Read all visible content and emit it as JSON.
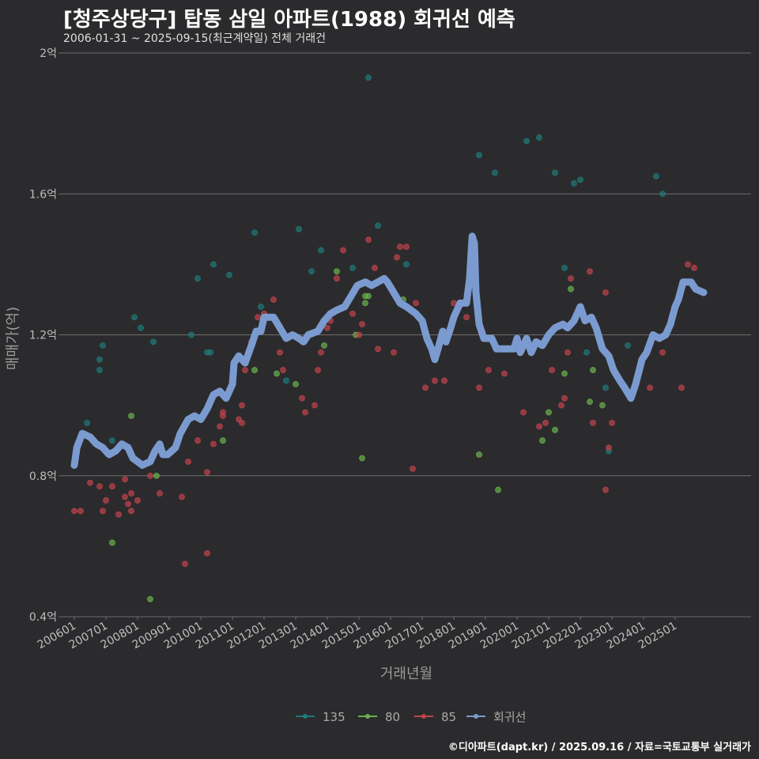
{
  "title": "[청주상당구] 탑동 삼일 아파트(1988) 회귀선 예측",
  "subtitle": "2006-01-31 ~ 2025-09-15(최근계약일) 전체 거래건",
  "caption": "©디아파트(dapt.kr) / 2025.09.16 / 자료=국토교통부 실거래가",
  "colors": {
    "background": "#2b2b2d",
    "grid": "#6e6e6e",
    "s135": "#1f7a7a",
    "s80": "#6ab04c",
    "s85": "#c0434b",
    "regression": "#7b9bd0"
  },
  "chart_data": {
    "type": "scatter",
    "xlabel": "거래년월",
    "ylabel": "매매가(억)",
    "x_ticks": [
      "200601",
      "200701",
      "200801",
      "200901",
      "201001",
      "201101",
      "201201",
      "201301",
      "201401",
      "201501",
      "201601",
      "201701",
      "201801",
      "201901",
      "202001",
      "202101",
      "202201",
      "202301",
      "202401",
      "202501"
    ],
    "xlim": [
      2005.6,
      2027.4
    ],
    "ylim": [
      0.4,
      2.0
    ],
    "y_ticks": [
      {
        "value": 0.4,
        "label": "0.4억"
      },
      {
        "value": 0.8,
        "label": "0.8억"
      },
      {
        "value": 1.2,
        "label": "1.2억"
      },
      {
        "value": 1.6,
        "label": "1.6억"
      },
      {
        "value": 2.0,
        "label": "2억"
      }
    ],
    "legend": {
      "position": "bottom",
      "items": [
        "135",
        "80",
        "85",
        "회귀선"
      ]
    },
    "series": [
      {
        "name": "135",
        "points": [
          [
            2006.4,
            0.95
          ],
          [
            2006.8,
            1.1
          ],
          [
            2006.8,
            1.13
          ],
          [
            2006.9,
            1.17
          ],
          [
            2007.2,
            0.9
          ],
          [
            2007.9,
            1.25
          ],
          [
            2008.1,
            1.22
          ],
          [
            2008.5,
            1.18
          ],
          [
            2009.7,
            1.2
          ],
          [
            2009.9,
            1.36
          ],
          [
            2010.2,
            1.15
          ],
          [
            2010.3,
            1.15
          ],
          [
            2010.4,
            1.4
          ],
          [
            2010.9,
            1.37
          ],
          [
            2011.7,
            1.49
          ],
          [
            2011.9,
            1.28
          ],
          [
            2012.7,
            1.07
          ],
          [
            2013.1,
            1.5
          ],
          [
            2013.5,
            1.38
          ],
          [
            2013.8,
            1.44
          ],
          [
            2014.8,
            1.39
          ],
          [
            2015.3,
            1.93
          ],
          [
            2015.6,
            1.51
          ],
          [
            2016.5,
            1.4
          ],
          [
            2018.8,
            1.71
          ],
          [
            2019.3,
            1.66
          ],
          [
            2020.3,
            1.75
          ],
          [
            2020.7,
            1.76
          ],
          [
            2021.2,
            1.66
          ],
          [
            2021.5,
            1.39
          ],
          [
            2021.8,
            1.63
          ],
          [
            2022.0,
            1.64
          ],
          [
            2022.2,
            1.15
          ],
          [
            2022.8,
            1.05
          ],
          [
            2022.9,
            0.87
          ],
          [
            2023.5,
            1.17
          ],
          [
            2024.4,
            1.65
          ],
          [
            2024.6,
            1.6
          ]
        ]
      },
      {
        "name": "80",
        "points": [
          [
            2007.2,
            0.61
          ],
          [
            2007.8,
            0.97
          ],
          [
            2008.4,
            0.45
          ],
          [
            2008.6,
            0.8
          ],
          [
            2010.7,
            0.9
          ],
          [
            2011.7,
            1.1
          ],
          [
            2012.4,
            1.09
          ],
          [
            2013.0,
            1.06
          ],
          [
            2013.9,
            1.17
          ],
          [
            2014.3,
            1.38
          ],
          [
            2014.9,
            1.2
          ],
          [
            2015.1,
            0.85
          ],
          [
            2015.2,
            1.29
          ],
          [
            2015.2,
            1.31
          ],
          [
            2015.3,
            1.31
          ],
          [
            2016.4,
            1.3
          ],
          [
            2018.8,
            0.86
          ],
          [
            2019.4,
            0.76
          ],
          [
            2020.8,
            0.9
          ],
          [
            2021.0,
            0.98
          ],
          [
            2021.2,
            0.93
          ],
          [
            2021.5,
            1.09
          ],
          [
            2021.7,
            1.33
          ],
          [
            2022.3,
            1.01
          ],
          [
            2022.4,
            1.1
          ],
          [
            2022.7,
            1.0
          ]
        ]
      },
      {
        "name": "85",
        "points": [
          [
            2006.0,
            0.7
          ],
          [
            2006.2,
            0.7
          ],
          [
            2006.5,
            0.78
          ],
          [
            2006.8,
            0.77
          ],
          [
            2006.9,
            0.7
          ],
          [
            2007.0,
            0.73
          ],
          [
            2007.2,
            0.77
          ],
          [
            2007.4,
            0.69
          ],
          [
            2007.6,
            0.74
          ],
          [
            2007.6,
            0.79
          ],
          [
            2007.7,
            0.72
          ],
          [
            2007.8,
            0.75
          ],
          [
            2007.8,
            0.7
          ],
          [
            2008.0,
            0.73
          ],
          [
            2008.4,
            0.8
          ],
          [
            2008.7,
            0.75
          ],
          [
            2009.4,
            0.74
          ],
          [
            2009.5,
            0.55
          ],
          [
            2009.6,
            0.84
          ],
          [
            2009.9,
            0.9
          ],
          [
            2010.2,
            0.81
          ],
          [
            2010.2,
            0.58
          ],
          [
            2010.4,
            0.89
          ],
          [
            2010.6,
            0.94
          ],
          [
            2010.7,
            0.98
          ],
          [
            2010.7,
            0.97
          ],
          [
            2011.2,
            0.96
          ],
          [
            2011.3,
            0.95
          ],
          [
            2011.3,
            1.0
          ],
          [
            2011.4,
            1.1
          ],
          [
            2011.6,
            1.18
          ],
          [
            2011.8,
            1.25
          ],
          [
            2012.0,
            1.26
          ],
          [
            2012.3,
            1.3
          ],
          [
            2012.5,
            1.15
          ],
          [
            2012.6,
            1.1
          ],
          [
            2013.2,
            1.02
          ],
          [
            2013.3,
            0.98
          ],
          [
            2013.6,
            1.0
          ],
          [
            2013.7,
            1.1
          ],
          [
            2013.8,
            1.15
          ],
          [
            2014.0,
            1.22
          ],
          [
            2014.1,
            1.24
          ],
          [
            2014.3,
            1.36
          ],
          [
            2014.5,
            1.44
          ],
          [
            2014.8,
            1.26
          ],
          [
            2015.0,
            1.2
          ],
          [
            2015.1,
            1.23
          ],
          [
            2015.3,
            1.47
          ],
          [
            2015.5,
            1.39
          ],
          [
            2015.6,
            1.16
          ],
          [
            2016.1,
            1.15
          ],
          [
            2016.2,
            1.42
          ],
          [
            2016.3,
            1.45
          ],
          [
            2016.5,
            1.45
          ],
          [
            2016.7,
            0.82
          ],
          [
            2016.8,
            1.29
          ],
          [
            2017.1,
            1.05
          ],
          [
            2017.4,
            1.07
          ],
          [
            2017.7,
            1.07
          ],
          [
            2018.0,
            1.29
          ],
          [
            2018.4,
            1.25
          ],
          [
            2018.8,
            1.05
          ],
          [
            2019.1,
            1.1
          ],
          [
            2019.6,
            1.09
          ],
          [
            2020.2,
            0.98
          ],
          [
            2020.7,
            0.94
          ],
          [
            2020.9,
            0.95
          ],
          [
            2021.1,
            1.1
          ],
          [
            2021.4,
            1.0
          ],
          [
            2021.5,
            1.02
          ],
          [
            2021.6,
            1.15
          ],
          [
            2021.7,
            1.36
          ],
          [
            2022.0,
            1.27
          ],
          [
            2022.3,
            1.38
          ],
          [
            2022.4,
            0.95
          ],
          [
            2022.8,
            1.32
          ],
          [
            2022.8,
            0.76
          ],
          [
            2022.9,
            0.88
          ],
          [
            2023.0,
            0.95
          ],
          [
            2024.2,
            1.05
          ],
          [
            2024.6,
            1.15
          ],
          [
            2025.2,
            1.05
          ],
          [
            2025.4,
            1.4
          ],
          [
            2025.6,
            1.39
          ]
        ]
      }
    ],
    "regression": [
      [
        2006.0,
        0.83
      ],
      [
        2006.08,
        0.88
      ],
      [
        2006.25,
        0.92
      ],
      [
        2006.5,
        0.91
      ],
      [
        2006.7,
        0.89
      ],
      [
        2006.9,
        0.88
      ],
      [
        2007.0,
        0.87
      ],
      [
        2007.1,
        0.86
      ],
      [
        2007.3,
        0.87
      ],
      [
        2007.5,
        0.89
      ],
      [
        2007.7,
        0.88
      ],
      [
        2007.85,
        0.85
      ],
      [
        2008.0,
        0.84
      ],
      [
        2008.15,
        0.83
      ],
      [
        2008.4,
        0.84
      ],
      [
        2008.55,
        0.87
      ],
      [
        2008.7,
        0.89
      ],
      [
        2008.8,
        0.86
      ],
      [
        2008.95,
        0.86
      ],
      [
        2009.2,
        0.88
      ],
      [
        2009.35,
        0.92
      ],
      [
        2009.6,
        0.96
      ],
      [
        2009.8,
        0.97
      ],
      [
        2010.0,
        0.96
      ],
      [
        2010.2,
        0.99
      ],
      [
        2010.4,
        1.03
      ],
      [
        2010.6,
        1.04
      ],
      [
        2010.8,
        1.02
      ],
      [
        2011.0,
        1.06
      ],
      [
        2011.05,
        1.12
      ],
      [
        2011.2,
        1.14
      ],
      [
        2011.4,
        1.12
      ],
      [
        2011.6,
        1.17
      ],
      [
        2011.75,
        1.21
      ],
      [
        2011.9,
        1.21
      ],
      [
        2012.0,
        1.25
      ],
      [
        2012.3,
        1.25
      ],
      [
        2012.5,
        1.22
      ],
      [
        2012.7,
        1.19
      ],
      [
        2012.9,
        1.2
      ],
      [
        2013.1,
        1.19
      ],
      [
        2013.25,
        1.18
      ],
      [
        2013.4,
        1.2
      ],
      [
        2013.7,
        1.21
      ],
      [
        2013.9,
        1.24
      ],
      [
        2014.1,
        1.26
      ],
      [
        2014.3,
        1.27
      ],
      [
        2014.55,
        1.28
      ],
      [
        2014.75,
        1.31
      ],
      [
        2014.95,
        1.34
      ],
      [
        2015.2,
        1.35
      ],
      [
        2015.4,
        1.34
      ],
      [
        2015.6,
        1.35
      ],
      [
        2015.8,
        1.36
      ],
      [
        2015.9,
        1.35
      ],
      [
        2016.1,
        1.32
      ],
      [
        2016.3,
        1.29
      ],
      [
        2016.5,
        1.28
      ],
      [
        2016.8,
        1.26
      ],
      [
        2017.0,
        1.24
      ],
      [
        2017.15,
        1.19
      ],
      [
        2017.3,
        1.16
      ],
      [
        2017.4,
        1.13
      ],
      [
        2017.5,
        1.16
      ],
      [
        2017.65,
        1.21
      ],
      [
        2017.75,
        1.18
      ],
      [
        2017.9,
        1.22
      ],
      [
        2018.0,
        1.25
      ],
      [
        2018.2,
        1.29
      ],
      [
        2018.4,
        1.29
      ],
      [
        2018.5,
        1.36
      ],
      [
        2018.58,
        1.48
      ],
      [
        2018.65,
        1.46
      ],
      [
        2018.7,
        1.32
      ],
      [
        2018.8,
        1.23
      ],
      [
        2018.95,
        1.19
      ],
      [
        2019.2,
        1.19
      ],
      [
        2019.35,
        1.16
      ],
      [
        2019.7,
        1.16
      ],
      [
        2019.9,
        1.16
      ],
      [
        2020.0,
        1.19
      ],
      [
        2020.1,
        1.15
      ],
      [
        2020.3,
        1.19
      ],
      [
        2020.45,
        1.15
      ],
      [
        2020.6,
        1.18
      ],
      [
        2020.8,
        1.17
      ],
      [
        2021.0,
        1.2
      ],
      [
        2021.2,
        1.22
      ],
      [
        2021.45,
        1.23
      ],
      [
        2021.6,
        1.22
      ],
      [
        2021.8,
        1.24
      ],
      [
        2022.0,
        1.28
      ],
      [
        2022.15,
        1.24
      ],
      [
        2022.35,
        1.25
      ],
      [
        2022.5,
        1.22
      ],
      [
        2022.7,
        1.16
      ],
      [
        2022.9,
        1.14
      ],
      [
        2023.05,
        1.1
      ],
      [
        2023.25,
        1.07
      ],
      [
        2023.4,
        1.05
      ],
      [
        2023.6,
        1.02
      ],
      [
        2023.75,
        1.06
      ],
      [
        2023.95,
        1.13
      ],
      [
        2024.1,
        1.15
      ],
      [
        2024.3,
        1.2
      ],
      [
        2024.5,
        1.19
      ],
      [
        2024.7,
        1.2
      ],
      [
        2024.85,
        1.23
      ],
      [
        2025.0,
        1.28
      ],
      [
        2025.1,
        1.3
      ],
      [
        2025.25,
        1.35
      ],
      [
        2025.5,
        1.35
      ],
      [
        2025.65,
        1.33
      ],
      [
        2025.9,
        1.32
      ]
    ]
  }
}
